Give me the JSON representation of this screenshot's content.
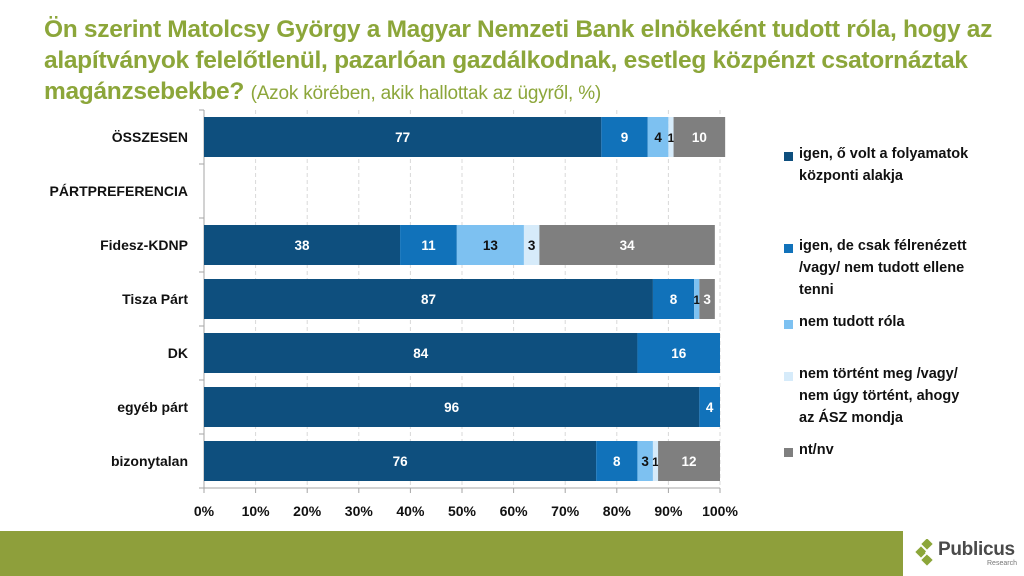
{
  "title": {
    "main": "Ön szerint Matolcsy György a Magyar Nemzeti Bank elnökeként tudott róla, hogy az alapítványok felelőtlenül, pazarlóan gazdálkodnak, esetleg közpénzt csatornáztak magánzsebekbe?",
    "subtitle": "(Azok körében, akik hallottak az ügyről, %)"
  },
  "chart_data": {
    "type": "bar",
    "orientation": "horizontal",
    "stacked": "100%",
    "title": "Ön szerint Matolcsy György a Magyar Nemzeti Bank elnökeként tudott róla, hogy az alapítványok felelőtlenül, pazarlóan gazdálkodnak, esetleg közpénzt csatornáztak magánzsebekbe? (Azok körében, akik hallottak az ügyről, %)",
    "xlabel": "",
    "ylabel": "",
    "xlim": [
      0,
      100
    ],
    "x_ticks": [
      "0%",
      "10%",
      "20%",
      "30%",
      "40%",
      "50%",
      "60%",
      "70%",
      "80%",
      "90%",
      "100%"
    ],
    "grid": "vertical dashed",
    "legend_position": "right",
    "categories": [
      "ÖSSZESEN",
      "PÁRTPREFERENCIA",
      "Fidesz-KDNP",
      "Tisza Párt",
      "DK",
      "egyéb párt",
      "bizonytalan"
    ],
    "series": [
      {
        "name": "igen, ő volt a folyamatok központi alakja",
        "color": "#0E4F7E",
        "label_color": "#ffffff",
        "values": [
          77,
          null,
          38,
          87,
          84,
          96,
          76
        ]
      },
      {
        "name": "igen, de csak félrenézett /vagy/ nem tudott ellene tenni",
        "color": "#1172BA",
        "label_color": "#ffffff",
        "values": [
          9,
          null,
          11,
          8,
          16,
          4,
          8
        ]
      },
      {
        "name": "nem tudott róla",
        "color": "#7DC1F1",
        "label_color": "#111111",
        "values": [
          4,
          null,
          13,
          1,
          null,
          null,
          3
        ]
      },
      {
        "name": "nem történt meg /vagy/ nem úgy történt, ahogy az ÁSZ mondja",
        "color": "#D6EBFA",
        "label_color": "#111111",
        "values": [
          1,
          null,
          3,
          null,
          null,
          null,
          1
        ]
      },
      {
        "name": "nt/nv",
        "color": "#7F7F7F",
        "label_color": "#ffffff",
        "values": [
          10,
          null,
          34,
          3,
          null,
          null,
          12
        ]
      }
    ]
  },
  "legend": [
    {
      "lines": [
        "igen, ő volt a folyamatok",
        "központi alakja"
      ],
      "color": "#0E4F7E"
    },
    {
      "lines": [
        "igen, de csak félrenézett",
        "/vagy/ nem tudott ellene",
        "tenni"
      ],
      "color": "#1172BA"
    },
    {
      "lines": [
        "nem tudott róla"
      ],
      "color": "#7DC1F1"
    },
    {
      "lines": [
        "nem történt meg /vagy/",
        "nem úgy történt, ahogy",
        "az ÁSZ mondja"
      ],
      "color": "#D6EBFA"
    },
    {
      "lines": [
        "nt/nv"
      ],
      "color": "#7F7F7F"
    }
  ],
  "branding": {
    "logo_name": "Publicus",
    "logo_sub": "Research",
    "accent_color": "#8CA63A",
    "footer_color": "#8E9F3B"
  }
}
